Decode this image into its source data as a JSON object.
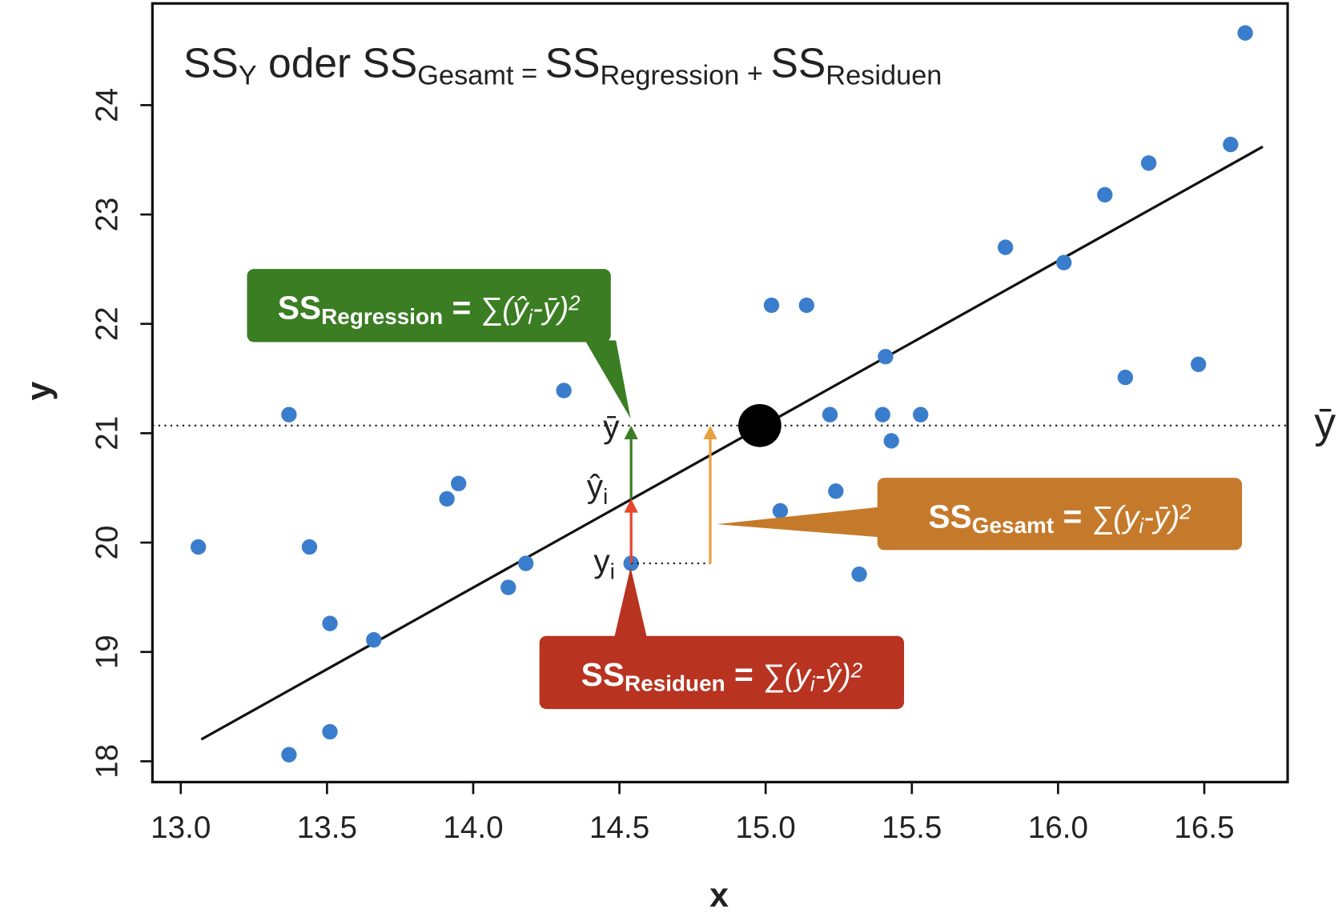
{
  "chart_data": {
    "type": "scatter",
    "title_parts": [
      "SS",
      "Y",
      " oder ",
      "SS",
      "Gesamt",
      " = ",
      "SS",
      "Regression",
      " + ",
      "SS",
      "Residuen"
    ],
    "x_label": "x",
    "y_label": "y",
    "x": [
      13.06,
      13.37,
      13.44,
      13.51,
      13.51,
      13.37,
      13.66,
      13.91,
      13.95,
      14.12,
      14.18,
      14.31,
      14.54,
      15.02,
      15.14,
      15.05,
      15.22,
      15.24,
      15.32,
      15.4,
      15.41,
      15.43,
      15.53,
      15.82,
      16.02,
      16.16,
      16.23,
      16.31,
      16.48,
      16.59,
      16.64
    ],
    "y": [
      19.96,
      21.17,
      19.96,
      19.26,
      18.27,
      18.06,
      19.11,
      20.4,
      20.54,
      19.59,
      19.81,
      21.39,
      19.81,
      22.17,
      22.17,
      20.29,
      21.17,
      20.47,
      19.71,
      21.17,
      21.7,
      20.93,
      21.17,
      22.7,
      22.56,
      23.18,
      21.51,
      23.47,
      21.63,
      23.64,
      24.66
    ],
    "color": "#3a7dcc",
    "regression": {
      "x": [
        13.07,
        16.7
      ],
      "y": [
        18.2,
        23.62
      ]
    },
    "mean": {
      "x": 14.98,
      "y": 21.07
    },
    "highlight": {
      "x": 14.54,
      "y": 19.81,
      "yhat": 20.4
    },
    "xlim": [
      12.903,
      16.785
    ],
    "ylim": [
      17.81,
      24.93
    ],
    "xticks": [
      {
        "value": 13,
        "label": "13.0"
      },
      {
        "value": 13.5,
        "label": "13.5"
      },
      {
        "value": 14,
        "label": "14.0"
      },
      {
        "value": 14.5,
        "label": "14.5"
      },
      {
        "value": 15,
        "label": "15.0"
      },
      {
        "value": 15.5,
        "label": "15.5"
      },
      {
        "value": 16,
        "label": "16.0"
      },
      {
        "value": 16.5,
        "label": "16.5"
      }
    ],
    "yticks": [
      18,
      19,
      20,
      21,
      22,
      23,
      24
    ],
    "labels": {
      "ybar": "ȳ",
      "yhat": "ŷ",
      "yhat_sub": "i",
      "yi": "y",
      "yi_sub": "i",
      "ybar_right": "ȳ"
    },
    "callouts": [
      {
        "parts": [
          "SS",
          "Regression",
          " = ",
          "∑(",
          "ŷ",
          "i",
          "-",
          "ȳ",
          ")",
          "2"
        ],
        "color": "#3a7d22"
      },
      {
        "parts": [
          "SS",
          "Gesamt",
          " = ",
          "∑(",
          "y",
          "i",
          "-",
          "ȳ",
          ")",
          "2"
        ],
        "color": "#c57a2b"
      },
      {
        "parts": [
          "SS",
          "Residuen",
          " = ",
          "∑(",
          "y",
          "i",
          "-",
          "ŷ",
          ")",
          "2"
        ],
        "color": "#b83320"
      }
    ]
  }
}
